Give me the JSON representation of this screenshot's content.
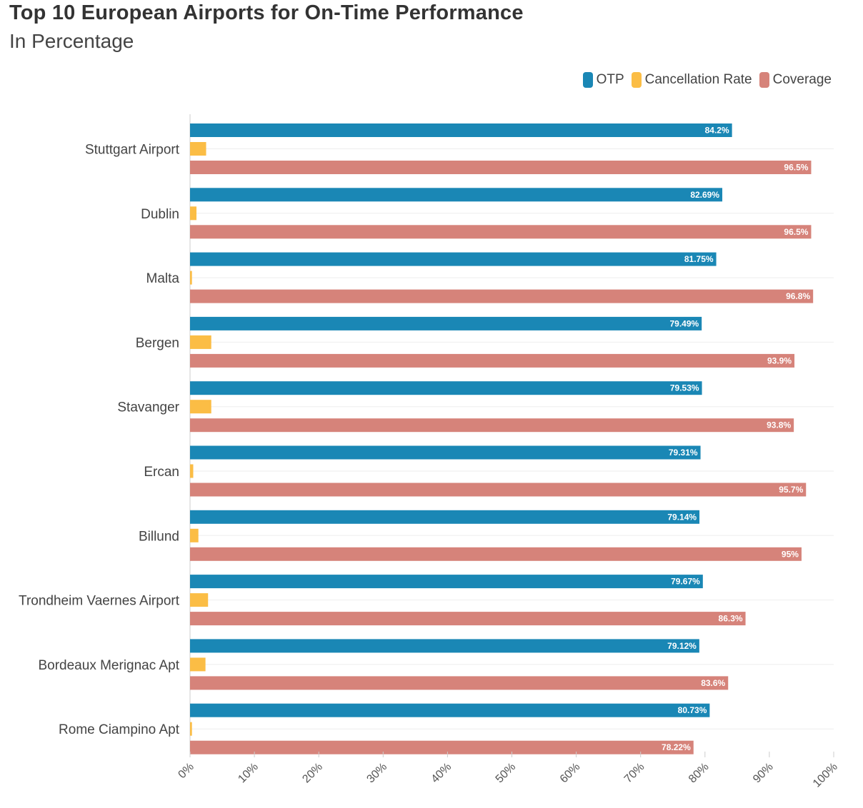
{
  "chart_data": {
    "type": "bar",
    "orientation": "horizontal",
    "title": "Top 10 European Airports for On-Time Performance",
    "subtitle": "In Percentage",
    "categories": [
      "Stuttgart Airport",
      "Dublin",
      "Malta",
      "Bergen",
      "Stavanger",
      "Ercan",
      "Billund",
      "Trondheim Vaernes Airport",
      "Bordeaux Merignac Apt",
      "Rome Ciampino Apt"
    ],
    "series": [
      {
        "name": "OTP",
        "color": "#1a87b5",
        "values": [
          84.2,
          82.69,
          81.75,
          79.49,
          79.53,
          79.31,
          79.14,
          79.67,
          79.12,
          80.73
        ],
        "labels": [
          "84.2%",
          "82.69%",
          "81.75%",
          "79.49%",
          "79.53%",
          "79.31%",
          "79.14%",
          "79.67%",
          "79.12%",
          "80.73%"
        ]
      },
      {
        "name": "Cancellation Rate",
        "color": "#fbbd45",
        "values": [
          2.5,
          1.0,
          0.3,
          3.3,
          3.3,
          0.5,
          1.3,
          2.8,
          2.4,
          0.3
        ],
        "labels": [
          "",
          "",
          "",
          "",
          "",
          "",
          "",
          "",
          "",
          ""
        ]
      },
      {
        "name": "Coverage",
        "color": "#d6837a",
        "values": [
          96.5,
          96.5,
          96.8,
          93.9,
          93.8,
          95.7,
          95,
          86.3,
          83.6,
          78.22
        ],
        "labels": [
          "96.5%",
          "96.5%",
          "96.8%",
          "93.9%",
          "93.8%",
          "95.7%",
          "95%",
          "86.3%",
          "83.6%",
          "78.22%"
        ]
      }
    ],
    "xlim": [
      0,
      100
    ],
    "xticks": [
      "0%",
      "10%",
      "20%",
      "30%",
      "40%",
      "50%",
      "60%",
      "70%",
      "80%",
      "90%",
      "100%"
    ],
    "legend": "top-right",
    "grid": true
  }
}
